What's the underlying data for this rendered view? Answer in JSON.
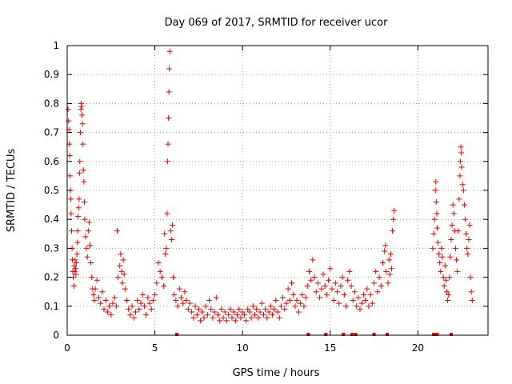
{
  "chart_data": {
    "type": "scatter",
    "title": "Day 069 of 2017, SRMTID for receiver ucor",
    "xlabel": "GPS time / hours",
    "ylabel": "SRMTID / TECUs",
    "xlim": [
      0,
      24
    ],
    "ylim": [
      0,
      1
    ],
    "xticks": [
      0,
      5,
      10,
      15,
      20
    ],
    "xtick_labels": [
      "0",
      "5",
      "10",
      "15",
      "20"
    ],
    "yticks": [
      0,
      0.1,
      0.2,
      0.3,
      0.4,
      0.5,
      0.6,
      0.7,
      0.8,
      0.9,
      1
    ],
    "ytick_labels": [
      "0",
      "0.1",
      "0.2",
      "0.3",
      "0.4",
      "0.5",
      "0.6",
      "0.7",
      "0.8",
      "0.9",
      "1"
    ],
    "grid": true,
    "marker": "+",
    "marker_color": "#ee0000",
    "series": [
      {
        "name": "SRMTID",
        "points": [
          [
            0.05,
            0.78
          ],
          [
            0.08,
            0.74
          ],
          [
            0.1,
            0.71
          ],
          [
            0.12,
            0.66
          ],
          [
            0.14,
            0.62
          ],
          [
            0.16,
            0.55
          ],
          [
            0.18,
            0.5
          ],
          [
            0.2,
            0.47
          ],
          [
            0.22,
            0.42
          ],
          [
            0.25,
            0.36
          ],
          [
            0.28,
            0.3
          ],
          [
            0.3,
            0.26
          ],
          [
            0.32,
            0.22
          ],
          [
            0.35,
            0.2
          ],
          [
            0.38,
            0.17
          ],
          [
            0.4,
            0.24
          ],
          [
            0.42,
            0.22
          ],
          [
            0.45,
            0.26
          ],
          [
            0.48,
            0.23
          ],
          [
            0.5,
            0.21
          ],
          [
            0.52,
            0.25
          ],
          [
            0.55,
            0.28
          ],
          [
            0.58,
            0.32
          ],
          [
            0.6,
            0.36
          ],
          [
            0.62,
            0.41
          ],
          [
            0.65,
            0.44
          ],
          [
            0.68,
            0.47
          ],
          [
            0.7,
            0.56
          ],
          [
            0.72,
            0.6
          ],
          [
            0.75,
            0.7
          ],
          [
            0.78,
            0.78
          ],
          [
            0.8,
            0.8
          ],
          [
            0.82,
            0.79
          ],
          [
            0.85,
            0.76
          ],
          [
            0.88,
            0.73
          ],
          [
            0.9,
            0.66
          ],
          [
            0.92,
            0.57
          ],
          [
            0.95,
            0.53
          ],
          [
            0.98,
            0.46
          ],
          [
            1.0,
            0.4
          ],
          [
            1.05,
            0.34
          ],
          [
            1.1,
            0.3
          ],
          [
            1.15,
            0.27
          ],
          [
            1.2,
            0.36
          ],
          [
            1.25,
            0.39
          ],
          [
            1.3,
            0.31
          ],
          [
            1.35,
            0.25
          ],
          [
            1.4,
            0.2
          ],
          [
            1.45,
            0.16
          ],
          [
            1.5,
            0.14
          ],
          [
            1.55,
            0.12
          ],
          [
            1.6,
            0.16
          ],
          [
            1.7,
            0.19
          ],
          [
            1.8,
            0.13
          ],
          [
            1.9,
            0.11
          ],
          [
            2.0,
            0.15
          ],
          [
            2.1,
            0.09
          ],
          [
            2.2,
            0.12
          ],
          [
            2.3,
            0.08
          ],
          [
            2.4,
            0.1
          ],
          [
            2.5,
            0.07
          ],
          [
            2.6,
            0.11
          ],
          [
            2.7,
            0.13
          ],
          [
            2.8,
            0.1
          ],
          [
            2.85,
            0.36
          ],
          [
            2.9,
            0.2
          ],
          [
            3.0,
            0.24
          ],
          [
            3.05,
            0.28
          ],
          [
            3.1,
            0.22
          ],
          [
            3.15,
            0.18
          ],
          [
            3.2,
            0.26
          ],
          [
            3.25,
            0.21
          ],
          [
            3.3,
            0.16
          ],
          [
            3.4,
            0.12
          ],
          [
            3.5,
            0.09
          ],
          [
            3.6,
            0.07
          ],
          [
            3.7,
            0.1
          ],
          [
            3.8,
            0.06
          ],
          [
            3.9,
            0.08
          ],
          [
            4.0,
            0.12
          ],
          [
            4.1,
            0.09
          ],
          [
            4.2,
            0.11
          ],
          [
            4.3,
            0.14
          ],
          [
            4.4,
            0.1
          ],
          [
            4.5,
            0.07
          ],
          [
            4.6,
            0.13
          ],
          [
            4.7,
            0.11
          ],
          [
            4.8,
            0.09
          ],
          [
            4.9,
            0.12
          ],
          [
            5.0,
            0.14
          ],
          [
            5.1,
            0.18
          ],
          [
            5.2,
            0.25
          ],
          [
            5.3,
            0.22
          ],
          [
            5.4,
            0.2
          ],
          [
            5.5,
            0.17
          ],
          [
            5.55,
            0.35
          ],
          [
            5.6,
            0.28
          ],
          [
            5.65,
            0.3
          ],
          [
            5.7,
            0.42
          ],
          [
            5.72,
            0.6
          ],
          [
            5.75,
            0.66
          ],
          [
            5.78,
            0.75
          ],
          [
            5.8,
            0.84
          ],
          [
            5.82,
            0.92
          ],
          [
            5.85,
            0.98
          ],
          [
            5.9,
            0.36
          ],
          [
            5.95,
            0.33
          ],
          [
            6.0,
            0.38
          ],
          [
            6.05,
            0.2
          ],
          [
            6.1,
            0.14
          ],
          [
            6.2,
            0.12
          ],
          [
            6.3,
            0.1
          ],
          [
            6.4,
            0.16
          ],
          [
            6.5,
            0.13
          ],
          [
            6.6,
            0.11
          ],
          [
            6.7,
            0.15
          ],
          [
            6.8,
            0.12
          ],
          [
            6.9,
            0.09
          ],
          [
            7.0,
            0.11
          ],
          [
            7.1,
            0.08
          ],
          [
            7.2,
            0.06
          ],
          [
            7.3,
            0.1
          ],
          [
            7.4,
            0.07
          ],
          [
            7.5,
            0.09
          ],
          [
            7.6,
            0.05
          ],
          [
            7.7,
            0.08
          ],
          [
            7.8,
            0.06
          ],
          [
            7.9,
            0.1
          ],
          [
            8.0,
            0.07
          ],
          [
            8.1,
            0.12
          ],
          [
            8.2,
            0.09
          ],
          [
            8.3,
            0.06
          ],
          [
            8.4,
            0.08
          ],
          [
            8.5,
            0.13
          ],
          [
            8.6,
            0.07
          ],
          [
            8.7,
            0.05
          ],
          [
            8.8,
            0.09
          ],
          [
            8.9,
            0.06
          ],
          [
            9.0,
            0.08
          ],
          [
            9.1,
            0.05
          ],
          [
            9.2,
            0.07
          ],
          [
            9.3,
            0.09
          ],
          [
            9.4,
            0.06
          ],
          [
            9.5,
            0.08
          ],
          [
            9.6,
            0.05
          ],
          [
            9.7,
            0.07
          ],
          [
            9.8,
            0.09
          ],
          [
            9.9,
            0.06
          ],
          [
            10.0,
            0.08
          ],
          [
            10.1,
            0.07
          ],
          [
            10.2,
            0.05
          ],
          [
            10.3,
            0.09
          ],
          [
            10.4,
            0.08
          ],
          [
            10.5,
            0.06
          ],
          [
            10.6,
            0.1
          ],
          [
            10.7,
            0.07
          ],
          [
            10.8,
            0.09
          ],
          [
            10.9,
            0.06
          ],
          [
            11.0,
            0.08
          ],
          [
            11.1,
            0.11
          ],
          [
            11.2,
            0.07
          ],
          [
            11.3,
            0.09
          ],
          [
            11.4,
            0.06
          ],
          [
            11.5,
            0.08
          ],
          [
            11.6,
            0.1
          ],
          [
            11.7,
            0.07
          ],
          [
            11.8,
            0.09
          ],
          [
            11.9,
            0.12
          ],
          [
            12.0,
            0.08
          ],
          [
            12.1,
            0.06
          ],
          [
            12.2,
            0.1
          ],
          [
            12.3,
            0.13
          ],
          [
            12.4,
            0.09
          ],
          [
            12.5,
            0.11
          ],
          [
            12.6,
            0.16
          ],
          [
            12.7,
            0.12
          ],
          [
            12.8,
            0.18
          ],
          [
            12.9,
            0.14
          ],
          [
            13.0,
            0.1
          ],
          [
            13.1,
            0.12
          ],
          [
            13.2,
            0.08
          ],
          [
            13.3,
            0.11
          ],
          [
            13.4,
            0.14
          ],
          [
            13.5,
            0.1
          ],
          [
            13.6,
            0.13
          ],
          [
            13.7,
            0.17
          ],
          [
            13.8,
            0.22
          ],
          [
            13.9,
            0.19
          ],
          [
            14.0,
            0.26
          ],
          [
            14.1,
            0.2
          ],
          [
            14.2,
            0.15
          ],
          [
            14.3,
            0.18
          ],
          [
            14.4,
            0.13
          ],
          [
            14.5,
            0.16
          ],
          [
            14.6,
            0.21
          ],
          [
            14.7,
            0.17
          ],
          [
            14.8,
            0.14
          ],
          [
            14.9,
            0.19
          ],
          [
            15.0,
            0.23
          ],
          [
            15.1,
            0.16
          ],
          [
            15.2,
            0.12
          ],
          [
            15.3,
            0.18
          ],
          [
            15.4,
            0.15
          ],
          [
            15.5,
            0.11
          ],
          [
            15.6,
            0.17
          ],
          [
            15.7,
            0.2
          ],
          [
            15.8,
            0.14
          ],
          [
            15.9,
            0.1
          ],
          [
            16.0,
            0.19
          ],
          [
            16.1,
            0.22
          ],
          [
            16.2,
            0.17
          ],
          [
            16.3,
            0.12
          ],
          [
            16.4,
            0.15
          ],
          [
            16.5,
            0.1
          ],
          [
            16.6,
            0.13
          ],
          [
            16.7,
            0.09
          ],
          [
            16.8,
            0.11
          ],
          [
            16.9,
            0.14
          ],
          [
            17.0,
            0.12
          ],
          [
            17.1,
            0.16
          ],
          [
            17.2,
            0.1
          ],
          [
            17.3,
            0.14
          ],
          [
            17.4,
            0.11
          ],
          [
            17.5,
            0.18
          ],
          [
            17.6,
            0.22
          ],
          [
            17.7,
            0.15
          ],
          [
            17.8,
            0.2
          ],
          [
            17.9,
            0.17
          ],
          [
            18.0,
            0.25
          ],
          [
            18.1,
            0.29
          ],
          [
            18.15,
            0.31
          ],
          [
            18.2,
            0.22
          ],
          [
            18.3,
            0.18
          ],
          [
            18.35,
            0.26
          ],
          [
            18.4,
            0.21
          ],
          [
            18.45,
            0.28
          ],
          [
            18.5,
            0.23
          ],
          [
            18.55,
            0.36
          ],
          [
            18.6,
            0.4
          ],
          [
            18.65,
            0.43
          ],
          [
            20.85,
            0.3
          ],
          [
            20.9,
            0.35
          ],
          [
            20.95,
            0.4
          ],
          [
            21.0,
            0.5
          ],
          [
            21.02,
            0.53
          ],
          [
            21.05,
            0.46
          ],
          [
            21.08,
            0.42
          ],
          [
            21.1,
            0.37
          ],
          [
            21.15,
            0.32
          ],
          [
            21.2,
            0.28
          ],
          [
            21.25,
            0.25
          ],
          [
            21.3,
            0.22
          ],
          [
            21.35,
            0.3
          ],
          [
            21.4,
            0.27
          ],
          [
            21.45,
            0.2
          ],
          [
            21.5,
            0.17
          ],
          [
            21.55,
            0.24
          ],
          [
            21.6,
            0.19
          ],
          [
            21.65,
            0.15
          ],
          [
            21.7,
            0.12
          ],
          [
            21.75,
            0.14
          ],
          [
            21.8,
            0.2
          ],
          [
            21.85,
            0.27
          ],
          [
            21.9,
            0.33
          ],
          [
            21.95,
            0.38
          ],
          [
            22.0,
            0.45
          ],
          [
            22.05,
            0.42
          ],
          [
            22.1,
            0.36
          ],
          [
            22.15,
            0.3
          ],
          [
            22.2,
            0.26
          ],
          [
            22.25,
            0.22
          ],
          [
            22.3,
            0.36
          ],
          [
            22.35,
            0.47
          ],
          [
            22.4,
            0.55
          ],
          [
            22.42,
            0.6
          ],
          [
            22.45,
            0.65
          ],
          [
            22.48,
            0.63
          ],
          [
            22.5,
            0.58
          ],
          [
            22.55,
            0.52
          ],
          [
            22.6,
            0.5
          ],
          [
            22.65,
            0.45
          ],
          [
            22.7,
            0.4
          ],
          [
            22.75,
            0.35
          ],
          [
            22.8,
            0.3
          ],
          [
            22.85,
            0.28
          ],
          [
            22.9,
            0.33
          ],
          [
            22.95,
            0.38
          ],
          [
            23.0,
            0.2
          ],
          [
            23.05,
            0.15
          ],
          [
            23.1,
            0.12
          ]
        ]
      }
    ],
    "zero_marks_x": [
      6.25,
      13.75,
      14.75,
      15.75,
      16.25,
      16.45,
      17.5,
      18.25,
      20.9,
      21.05,
      21.1,
      21.9
    ]
  }
}
